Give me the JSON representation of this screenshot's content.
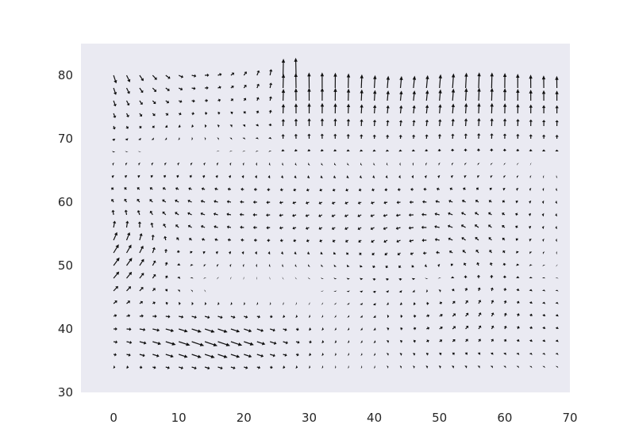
{
  "chart_data": {
    "type": "quiver",
    "title": "",
    "xlabel": "",
    "ylabel": "",
    "xlim": [
      -5,
      70
    ],
    "ylim": [
      30,
      85
    ],
    "xticks": [
      0,
      10,
      20,
      30,
      40,
      50,
      60,
      70
    ],
    "yticks": [
      30,
      40,
      50,
      60,
      70,
      80
    ],
    "x_tick_labels": [
      "0",
      "10",
      "20",
      "30",
      "40",
      "50",
      "60",
      "70"
    ],
    "y_tick_labels": [
      "30",
      "40",
      "50",
      "60",
      "70",
      "80"
    ],
    "grid": false,
    "axes_facecolor": "#eaeaf2",
    "arrow_color": "#111111",
    "grid_x": {
      "start": 0,
      "stop": 68,
      "step": 2
    },
    "grid_y": {
      "start": 34,
      "stop": 80,
      "step": 2
    },
    "vectors_sample": [
      {
        "x": 0,
        "y": 34,
        "u": 1.2,
        "v": 0.3
      },
      {
        "x": 10,
        "y": 40,
        "u": 4.0,
        "v": -0.5
      },
      {
        "x": 20,
        "y": 36,
        "u": 3.5,
        "v": -2.0
      },
      {
        "x": 0,
        "y": 52,
        "u": 2.5,
        "v": 3.0
      },
      {
        "x": 6,
        "y": 64,
        "u": 0.3,
        "v": 2.0
      },
      {
        "x": 20,
        "y": 76,
        "u": 2.0,
        "v": -3.5
      },
      {
        "x": 40,
        "y": 76,
        "u": -0.5,
        "v": 6.0
      },
      {
        "x": 60,
        "y": 76,
        "u": 0.5,
        "v": 6.0
      },
      {
        "x": 40,
        "y": 60,
        "u": -2.5,
        "v": 0.6
      },
      {
        "x": 60,
        "y": 50,
        "u": -1.0,
        "v": 0.2
      },
      {
        "x": 50,
        "y": 40,
        "u": 0.2,
        "v": 1.2
      },
      {
        "x": 64,
        "y": 40,
        "u": 0.0,
        "v": 0.4
      }
    ]
  }
}
